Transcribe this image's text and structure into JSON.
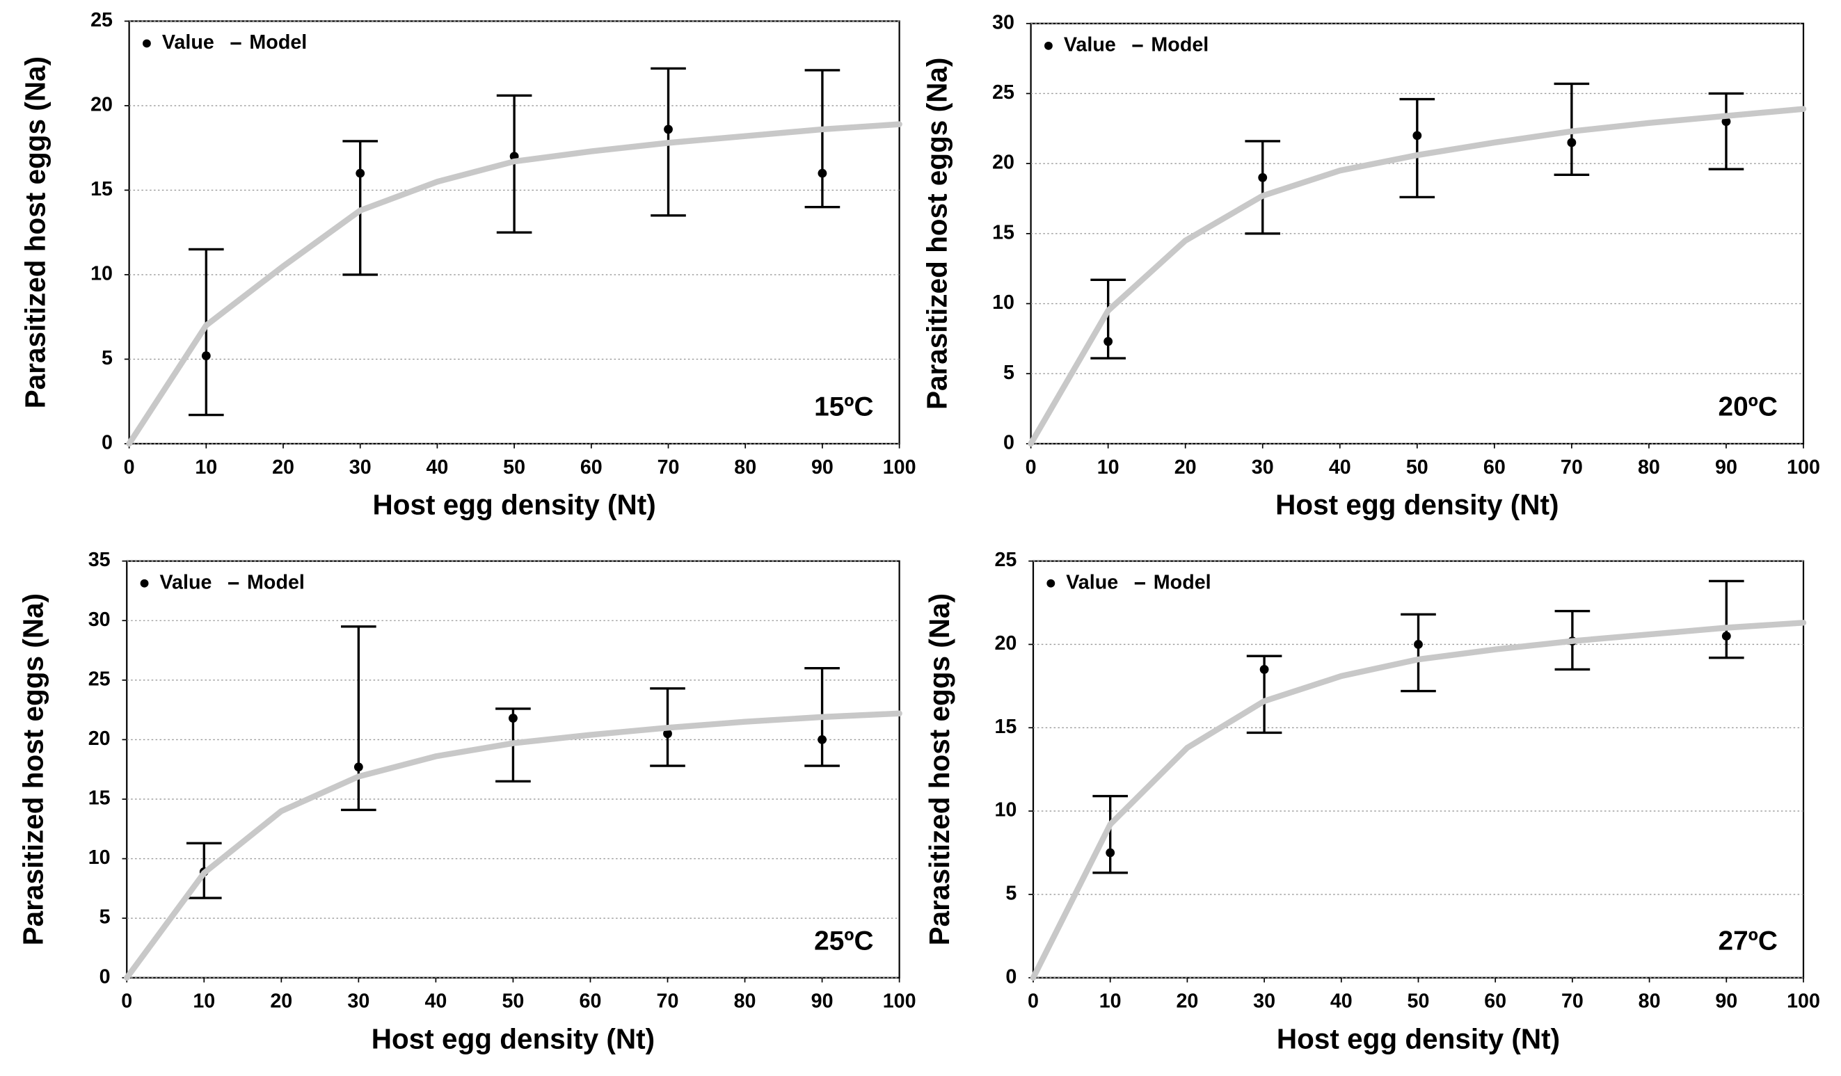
{
  "chart_data": [
    {
      "type": "scatter",
      "annotation": "15ºC",
      "xlabel": "Host egg density (Nt)",
      "ylabel": "Parasitized host eggs (Na)",
      "xlim": [
        0,
        100
      ],
      "xticks": [
        0,
        10,
        20,
        30,
        40,
        50,
        60,
        70,
        80,
        90,
        100
      ],
      "ylim": [
        0,
        25
      ],
      "yticks": [
        0,
        5,
        10,
        15,
        20,
        25
      ],
      "grid": true,
      "series": [
        {
          "name": "Value",
          "color": "#000000",
          "style": "points",
          "x": [
            10,
            30,
            50,
            70,
            90
          ],
          "values": [
            5.2,
            16,
            17,
            18.6,
            16
          ],
          "lower": [
            1.7,
            10,
            12.5,
            13.5,
            14
          ],
          "upper": [
            11.5,
            17.9,
            20.6,
            22.2,
            22.1
          ]
        },
        {
          "name": "Model",
          "color": "#c8c8c8",
          "style": "line",
          "x": [
            0,
            10,
            20,
            30,
            40,
            50,
            60,
            70,
            80,
            90,
            100
          ],
          "values": [
            0,
            7,
            10.5,
            13.8,
            15.5,
            16.7,
            17.3,
            17.8,
            18.2,
            18.6,
            18.9
          ]
        }
      ]
    },
    {
      "type": "scatter",
      "annotation": "20ºC",
      "xlabel": "Host egg density (Nt)",
      "ylabel": "Parasitized host eggs (Na)",
      "xlim": [
        0,
        100
      ],
      "xticks": [
        0,
        10,
        20,
        30,
        40,
        50,
        60,
        70,
        80,
        90,
        100
      ],
      "ylim": [
        0,
        30
      ],
      "yticks": [
        0,
        5,
        10,
        15,
        20,
        25,
        30
      ],
      "grid": true,
      "series": [
        {
          "name": "Value",
          "color": "#000000",
          "style": "points",
          "x": [
            10,
            30,
            50,
            70,
            90
          ],
          "values": [
            7.3,
            19,
            22,
            21.5,
            23
          ],
          "lower": [
            6.1,
            15,
            17.6,
            19.2,
            19.6
          ],
          "upper": [
            11.7,
            21.6,
            24.6,
            25.7,
            25
          ]
        },
        {
          "name": "Model",
          "color": "#c8c8c8",
          "style": "line",
          "x": [
            0,
            10,
            20,
            30,
            40,
            50,
            60,
            70,
            80,
            90,
            100
          ],
          "values": [
            0,
            9.5,
            14.5,
            17.7,
            19.5,
            20.6,
            21.5,
            22.3,
            22.9,
            23.4,
            23.9
          ]
        }
      ]
    },
    {
      "type": "scatter",
      "annotation": "25ºC",
      "xlabel": "Host egg density (Nt)",
      "ylabel": "Parasitized host eggs (Na)",
      "xlim": [
        0,
        100
      ],
      "xticks": [
        0,
        10,
        20,
        30,
        40,
        50,
        60,
        70,
        80,
        90,
        100
      ],
      "ylim": [
        0,
        35
      ],
      "yticks": [
        0,
        5,
        10,
        15,
        20,
        25,
        30,
        35
      ],
      "grid": true,
      "series": [
        {
          "name": "Value",
          "color": "#000000",
          "style": "points",
          "x": [
            10,
            30,
            50,
            70,
            90
          ],
          "values": [
            8.9,
            17.7,
            21.8,
            20.5,
            20
          ],
          "lower": [
            6.7,
            14.1,
            16.5,
            17.8,
            17.8
          ],
          "upper": [
            11.3,
            29.5,
            22.6,
            24.3,
            26
          ]
        },
        {
          "name": "Model",
          "color": "#c8c8c8",
          "style": "line",
          "x": [
            0,
            10,
            20,
            30,
            40,
            50,
            60,
            70,
            80,
            90,
            100
          ],
          "values": [
            0,
            8.8,
            14,
            16.9,
            18.6,
            19.7,
            20.4,
            21,
            21.5,
            21.9,
            22.2
          ]
        }
      ]
    },
    {
      "type": "scatter",
      "annotation": "27ºC",
      "xlabel": "Host egg density (Nt)",
      "ylabel": "Parasitized host eggs (Na)",
      "xlim": [
        0,
        100
      ],
      "xticks": [
        0,
        10,
        20,
        30,
        40,
        50,
        60,
        70,
        80,
        90,
        100
      ],
      "ylim": [
        0,
        25
      ],
      "yticks": [
        0,
        5,
        10,
        15,
        20,
        25
      ],
      "grid": true,
      "series": [
        {
          "name": "Value",
          "color": "#000000",
          "style": "points",
          "x": [
            10,
            30,
            50,
            70,
            90
          ],
          "values": [
            7.5,
            18.5,
            20,
            20.2,
            20.5
          ],
          "lower": [
            6.3,
            14.7,
            17.2,
            18.5,
            19.2
          ],
          "upper": [
            10.9,
            19.3,
            21.8,
            22,
            23.8
          ]
        },
        {
          "name": "Model",
          "color": "#c8c8c8",
          "style": "line",
          "x": [
            0,
            10,
            20,
            30,
            40,
            50,
            60,
            70,
            80,
            90,
            100
          ],
          "values": [
            0,
            9.2,
            13.8,
            16.6,
            18.1,
            19.1,
            19.7,
            20.2,
            20.6,
            21,
            21.3
          ]
        }
      ]
    }
  ]
}
